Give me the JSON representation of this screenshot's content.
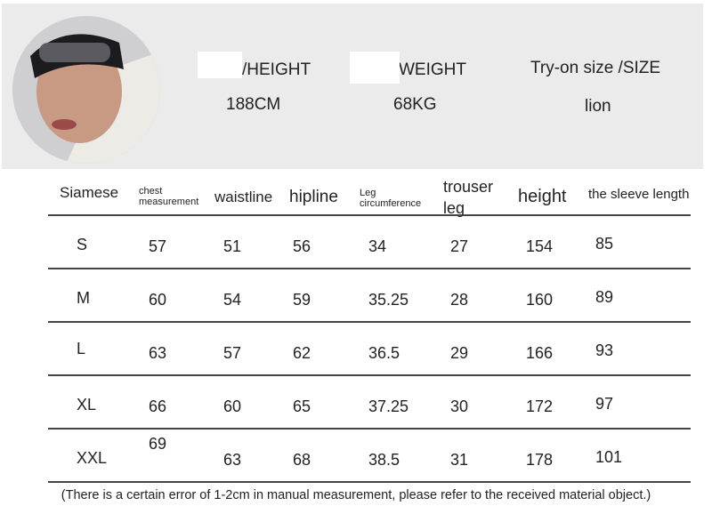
{
  "model": {
    "height_label": "/HEIGHT",
    "height_value": "188CM",
    "weight_label": "WEIGHT",
    "weight_value": "68KG",
    "size_label": "Try-on size /SIZE",
    "size_value": "lion"
  },
  "table": {
    "headers": [
      "Siamese",
      "chest measurement",
      "waistline",
      "hipline",
      "Leg circumference",
      "trouser leg",
      "height",
      "the sleeve length"
    ],
    "rows": [
      [
        "S",
        "57",
        "51",
        "56",
        "34",
        "27",
        "154",
        "85"
      ],
      [
        "M",
        "60",
        "54",
        "59",
        "35.25",
        "28",
        "160",
        "89"
      ],
      [
        "L",
        "63",
        "57",
        "62",
        "36.5",
        "29",
        "166",
        "93"
      ],
      [
        "XL",
        "66",
        "60",
        "65",
        "37.25",
        "30",
        "172",
        "97"
      ],
      [
        "XXL",
        "69",
        "63",
        "68",
        "38.5",
        "31",
        "178",
        "101"
      ]
    ]
  },
  "footnote": "(There is a certain error of 1-2cm in manual measurement, please refer to the received material object.)"
}
